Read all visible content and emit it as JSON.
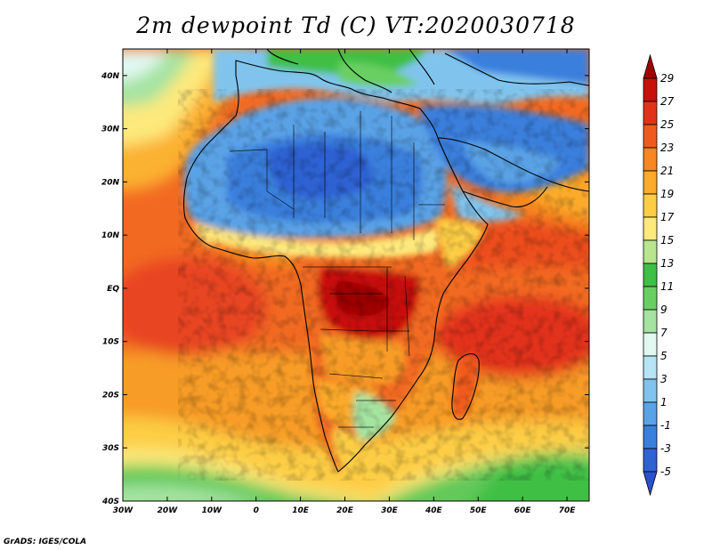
{
  "title": "2m dewpoint Td (C) VT:2020030718",
  "credit": "GrADS: IGES/COLA",
  "map": {
    "lon_range": [
      -30,
      75
    ],
    "lat_range": [
      -40,
      45
    ],
    "x_ticks": [
      "30W",
      "20W",
      "10W",
      "0",
      "10E",
      "20E",
      "30E",
      "40E",
      "50E",
      "60E",
      "70E"
    ],
    "x_tick_values": [
      -30,
      -20,
      -10,
      0,
      10,
      20,
      30,
      40,
      50,
      60,
      70
    ],
    "y_ticks": [
      "40N",
      "30N",
      "20N",
      "10N",
      "EQ",
      "10S",
      "20S",
      "30S",
      "40S"
    ],
    "y_tick_values": [
      40,
      30,
      20,
      10,
      0,
      -10,
      -20,
      -30,
      -40
    ]
  },
  "colorbar": {
    "labels": [
      "29",
      "27",
      "25",
      "23",
      "21",
      "19",
      "17",
      "15",
      "13",
      "11",
      "9",
      "7",
      "5",
      "3",
      "1",
      "-1",
      "-3",
      "-5"
    ],
    "colors": [
      "#9e0000",
      "#c8100c",
      "#e3321a",
      "#f15a1f",
      "#f7861f",
      "#fbaa2c",
      "#fccd45",
      "#fde97c",
      "#b8e58e",
      "#3fbf45",
      "#69cf62",
      "#a5e3a0",
      "#e1f8f1",
      "#b6e4f5",
      "#80c4ee",
      "#5aa2e6",
      "#3b7fdd",
      "#2f62d3",
      "#2a52cc"
    ]
  }
}
